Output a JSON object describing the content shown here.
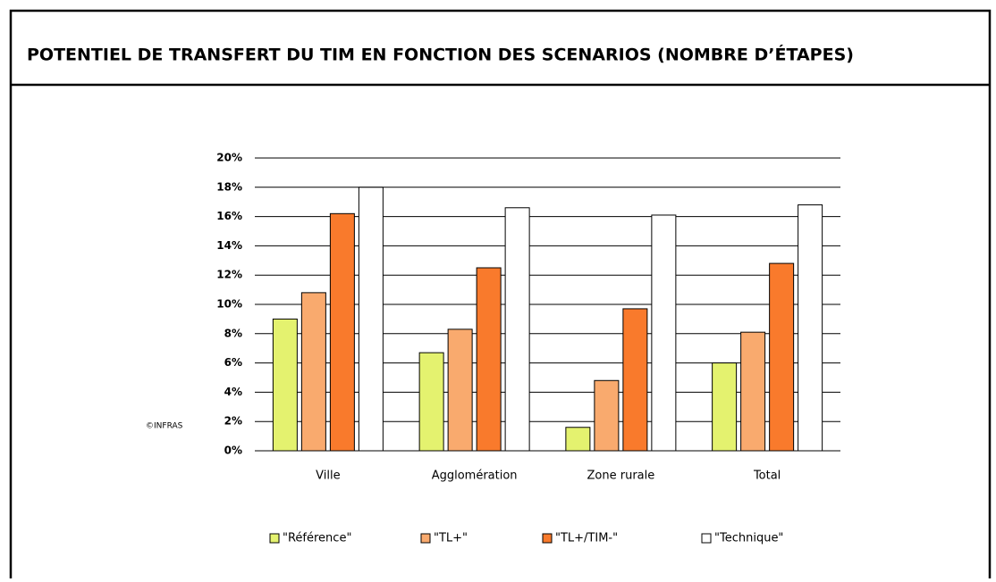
{
  "chart_data": {
    "type": "bar",
    "title": "POTENTIEL DE TRANSFERT DU TIM EN FONCTION DES SCENARIOS (NOMBRE D’ÉTAPES)",
    "annotation": "©INFRAS",
    "categories": [
      "Ville",
      "Agglomération",
      "Zone rurale",
      "Total"
    ],
    "series": [
      {
        "name": "\"Référence\"",
        "color": "#e4f26f",
        "values": [
          9.0,
          6.7,
          1.6,
          6.0
        ]
      },
      {
        "name": "\"TL+\"",
        "color": "#f9aa6e",
        "values": [
          10.8,
          8.3,
          4.8,
          8.1
        ]
      },
      {
        "name": "\"TL+/TIM-\"",
        "color": "#f97a2c",
        "values": [
          16.2,
          12.5,
          9.7,
          12.8
        ]
      },
      {
        "name": "\"Technique\"",
        "color": "#ffffff",
        "values": [
          18.0,
          16.6,
          16.1,
          16.8
        ]
      }
    ],
    "ylim": [
      0,
      20
    ],
    "yticks": [
      {
        "value": 0,
        "label": "0%"
      },
      {
        "value": 2,
        "label": "2%"
      },
      {
        "value": 4,
        "label": "4%"
      },
      {
        "value": 6,
        "label": "6%"
      },
      {
        "value": 8,
        "label": "8%"
      },
      {
        "value": 10,
        "label": "10%"
      },
      {
        "value": 12,
        "label": "12%"
      },
      {
        "value": 14,
        "label": "14%"
      },
      {
        "value": 16,
        "label": "16%"
      },
      {
        "value": 18,
        "label": "18%"
      },
      {
        "value": 20,
        "label": "20%"
      }
    ],
    "grid": true,
    "legend": "bottom"
  }
}
